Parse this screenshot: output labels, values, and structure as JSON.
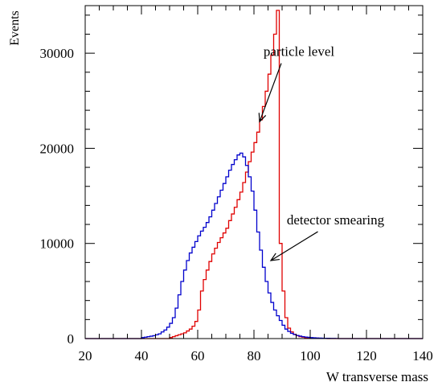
{
  "chart_data": {
    "type": "line",
    "step": true,
    "title": "",
    "xlabel": "W transverse mass",
    "ylabel": "Events",
    "xlim": [
      20,
      140
    ],
    "ylim": [
      0,
      35000
    ],
    "xticks": [
      20,
      40,
      60,
      80,
      100,
      120,
      140
    ],
    "xtick_labels": [
      "20",
      "40",
      "60",
      "80",
      "100",
      "120",
      "140"
    ],
    "yticks": [
      0,
      10000,
      20000,
      30000
    ],
    "ytick_labels": [
      "0",
      "10000",
      "20000",
      "30000"
    ],
    "grid": false,
    "legend": "none",
    "x": [
      20,
      21,
      22,
      23,
      24,
      25,
      26,
      27,
      28,
      29,
      30,
      31,
      32,
      33,
      34,
      35,
      36,
      37,
      38,
      39,
      40,
      41,
      42,
      43,
      44,
      45,
      46,
      47,
      48,
      49,
      50,
      51,
      52,
      53,
      54,
      55,
      56,
      57,
      58,
      59,
      60,
      61,
      62,
      63,
      64,
      65,
      66,
      67,
      68,
      69,
      70,
      71,
      72,
      73,
      74,
      75,
      76,
      77,
      78,
      79,
      80,
      81,
      82,
      83,
      84,
      85,
      86,
      87,
      88,
      89,
      90,
      91,
      92,
      93,
      94,
      95,
      96,
      97,
      98,
      99,
      100,
      101,
      102,
      103,
      104,
      105,
      106,
      107,
      108,
      109,
      110,
      111,
      112,
      113,
      114,
      115,
      116,
      117,
      118,
      119,
      120,
      121,
      122,
      123,
      124,
      125,
      126,
      127,
      128,
      129,
      130,
      131,
      132,
      133,
      134,
      135,
      136,
      137,
      138,
      139
    ],
    "series": [
      {
        "name": "particle level",
        "color": "#e00000",
        "values": [
          0,
          0,
          0,
          0,
          0,
          0,
          0,
          0,
          0,
          0,
          0,
          0,
          0,
          0,
          0,
          0,
          0,
          0,
          0,
          0,
          0,
          0,
          0,
          0,
          0,
          0,
          0,
          0,
          0,
          0,
          100,
          200,
          300,
          400,
          500,
          600,
          800,
          1000,
          1300,
          1800,
          3000,
          5000,
          6200,
          7200,
          8100,
          8900,
          9500,
          10100,
          10600,
          11100,
          11600,
          12400,
          13100,
          13800,
          14600,
          15400,
          16400,
          17500,
          18600,
          19600,
          20600,
          21700,
          23000,
          24400,
          26000,
          27800,
          29800,
          32000,
          34500,
          10000,
          5000,
          2200,
          1100,
          700,
          450,
          300,
          200,
          150,
          100,
          80,
          60,
          50,
          40,
          30,
          20,
          10,
          0,
          0,
          0,
          0,
          0,
          0,
          0,
          0,
          0,
          0,
          0,
          0,
          0,
          0,
          0,
          0,
          0,
          0,
          0,
          0,
          0,
          0,
          0,
          0,
          0,
          0,
          0,
          0,
          0,
          0,
          0,
          0,
          0,
          0
        ]
      },
      {
        "name": "detector smearing",
        "color": "#0000cc",
        "values": [
          0,
          0,
          0,
          0,
          0,
          0,
          0,
          0,
          0,
          0,
          0,
          0,
          0,
          0,
          0,
          0,
          0,
          0,
          0,
          0,
          100,
          150,
          200,
          250,
          300,
          400,
          500,
          700,
          900,
          1200,
          1600,
          2200,
          3200,
          4600,
          6000,
          7200,
          8200,
          9000,
          9600,
          10200,
          10800,
          11300,
          11700,
          12200,
          12800,
          13500,
          14200,
          14900,
          15600,
          16300,
          17000,
          17700,
          18300,
          18800,
          19300,
          19500,
          19100,
          18200,
          17000,
          15500,
          13500,
          11200,
          9300,
          7500,
          6000,
          4800,
          3800,
          3000,
          2400,
          1900,
          1400,
          1000,
          750,
          550,
          420,
          330,
          260,
          200,
          160,
          130,
          100,
          80,
          60,
          50,
          40,
          30,
          25,
          20,
          15,
          10,
          0,
          0,
          0,
          0,
          0,
          0,
          0,
          0,
          0,
          0,
          0,
          0,
          0,
          0,
          0,
          0,
          0,
          0,
          0,
          0,
          0,
          0,
          0,
          0,
          0,
          0,
          0,
          0,
          0,
          0
        ]
      }
    ],
    "annotations": [
      {
        "text": "particle level",
        "x_text": 96,
        "y_text": 29700,
        "x_arrow": 82,
        "y_arrow": 22800
      },
      {
        "text": "detector smearing",
        "x_text": 109,
        "y_text": 12000,
        "x_arrow": 86,
        "y_arrow": 8200
      }
    ]
  }
}
